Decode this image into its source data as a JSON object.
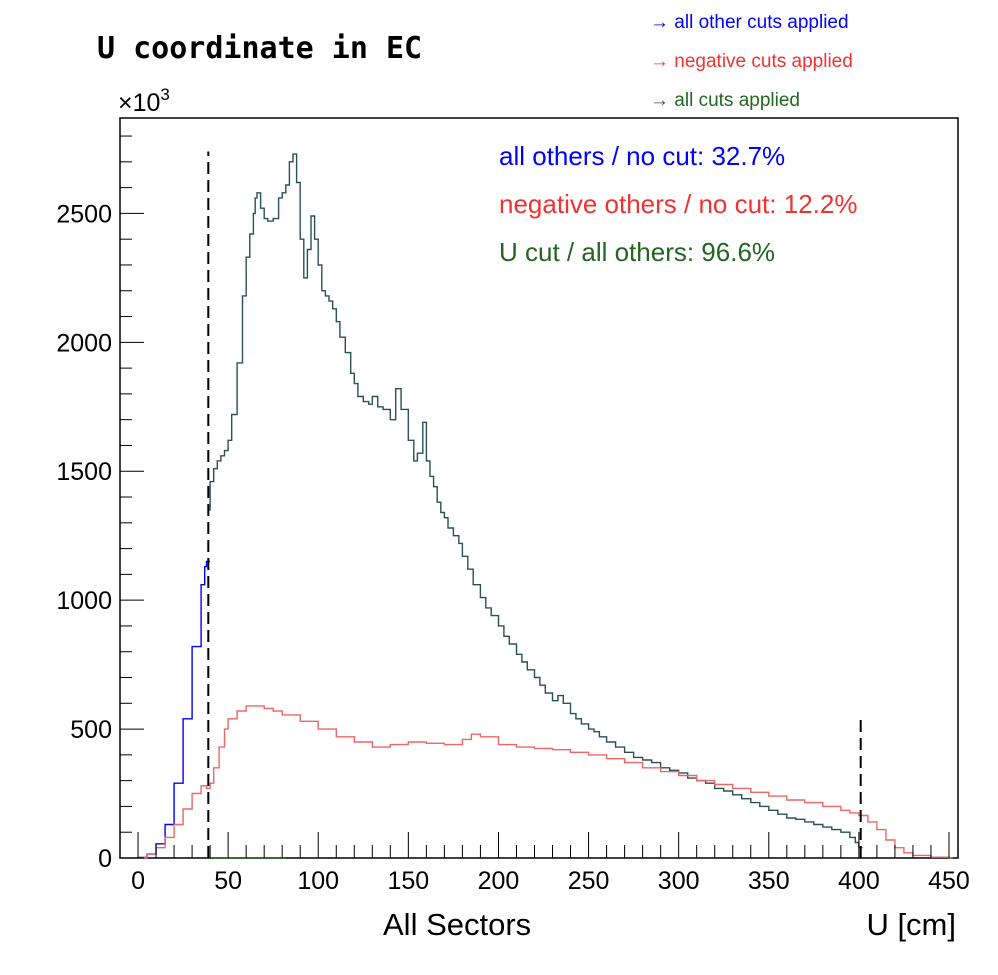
{
  "chart_data": {
    "type": "line",
    "title": "U coordinate in EC",
    "xlabel": "U [cm]",
    "sublabel": "All Sectors",
    "ylabel": "",
    "y_multiplier": "×10",
    "y_multiplier_exp": "3",
    "xlim": [
      -10,
      455
    ],
    "ylim": [
      0,
      2870
    ],
    "x_ticks": [
      0,
      50,
      100,
      150,
      200,
      250,
      300,
      350,
      400,
      450
    ],
    "y_ticks": [
      0,
      500,
      1000,
      1500,
      2000,
      2500
    ],
    "grid": false,
    "legend": [
      {
        "text": "→ all other cuts applied",
        "color": "#0000ff"
      },
      {
        "text": "→ negative cuts applied",
        "color": "#ee3333"
      },
      {
        "text": "→ all cuts applied",
        "color": "#226622"
      }
    ],
    "annotations": [
      {
        "text": "all others / no cut:  32.7%",
        "color": "#0000ff"
      },
      {
        "text": "negative others / no cut:  12.2%",
        "color": "#ee3333"
      },
      {
        "text": "U cut / all others:  96.6%",
        "color": "#226622"
      }
    ],
    "cut_lines": [
      {
        "x": 39,
        "y_top": 2740
      },
      {
        "x": 401,
        "y_top": 550
      }
    ],
    "series": [
      {
        "color": "#0000ff",
        "x": [
          0,
          5,
          10,
          15,
          20,
          25,
          30,
          35,
          37,
          38
        ],
        "y": [
          2,
          15,
          55,
          130,
          290,
          540,
          820,
          1060,
          1130,
          1150
        ]
      },
      {
        "color": "#2b5050",
        "x": [
          39,
          40,
          42,
          44,
          46,
          48,
          50,
          52,
          55,
          58,
          60,
          62,
          64,
          65,
          66,
          68,
          70,
          72,
          75,
          78,
          80,
          82,
          84,
          86,
          88,
          90,
          92,
          94,
          96,
          98,
          100,
          102,
          104,
          106,
          108,
          110,
          112,
          115,
          118,
          120,
          122,
          125,
          128,
          130,
          133,
          136,
          140,
          143,
          146,
          150,
          153,
          155,
          158,
          160,
          162,
          164,
          166,
          168,
          170,
          172,
          175,
          178,
          180,
          183,
          186,
          190,
          193,
          196,
          200,
          203,
          206,
          210,
          213,
          216,
          220,
          223,
          226,
          230,
          233,
          236,
          240,
          243,
          246,
          250,
          253,
          256,
          260,
          265,
          270,
          275,
          280,
          285,
          290,
          295,
          300,
          305,
          310,
          315,
          320,
          325,
          330,
          335,
          340,
          345,
          350,
          355,
          360,
          365,
          370,
          375,
          380,
          385,
          390,
          395,
          398,
          400
        ],
        "y": [
          1350,
          1460,
          1510,
          1540,
          1560,
          1580,
          1620,
          1720,
          1920,
          2180,
          2330,
          2420,
          2500,
          2560,
          2580,
          2520,
          2480,
          2470,
          2480,
          2560,
          2580,
          2610,
          2700,
          2730,
          2620,
          2400,
          2250,
          2360,
          2490,
          2400,
          2300,
          2200,
          2180,
          2160,
          2130,
          2080,
          2020,
          1960,
          1880,
          1840,
          1790,
          1770,
          1760,
          1790,
          1750,
          1740,
          1700,
          1820,
          1740,
          1620,
          1540,
          1570,
          1690,
          1540,
          1480,
          1440,
          1380,
          1340,
          1320,
          1280,
          1250,
          1220,
          1170,
          1120,
          1060,
          1010,
          970,
          940,
          900,
          860,
          830,
          790,
          760,
          730,
          700,
          670,
          640,
          610,
          630,
          600,
          560,
          540,
          520,
          500,
          490,
          470,
          450,
          430,
          410,
          390,
          380,
          370,
          350,
          340,
          330,
          310,
          300,
          290,
          270,
          260,
          245,
          230,
          215,
          200,
          185,
          170,
          155,
          150,
          140,
          130,
          120,
          110,
          100,
          80,
          60,
          40
        ]
      },
      {
        "color": "#ee6666",
        "x": [
          0,
          5,
          10,
          15,
          20,
          25,
          30,
          35,
          38,
          40,
          42,
          45,
          48,
          50,
          55,
          60,
          65,
          70,
          75,
          80,
          90,
          100,
          110,
          120,
          130,
          140,
          150,
          160,
          170,
          180,
          185,
          190,
          200,
          210,
          220,
          230,
          240,
          250,
          260,
          270,
          280,
          290,
          300,
          310,
          320,
          330,
          340,
          350,
          360,
          370,
          380,
          390,
          395,
          400,
          405,
          410,
          415,
          420,
          425,
          430,
          440,
          450
        ],
        "y": [
          0,
          15,
          40,
          80,
          130,
          190,
          250,
          280,
          270,
          290,
          350,
          430,
          500,
          540,
          570,
          590,
          590,
          580,
          570,
          555,
          530,
          500,
          470,
          450,
          430,
          440,
          450,
          445,
          440,
          460,
          480,
          470,
          440,
          430,
          425,
          420,
          410,
          400,
          385,
          370,
          350,
          335,
          320,
          300,
          285,
          270,
          255,
          240,
          225,
          215,
          200,
          185,
          175,
          165,
          140,
          110,
          70,
          40,
          20,
          10,
          3,
          1
        ]
      },
      {
        "color": "#226622",
        "x": [
          40,
          80
        ],
        "y": [
          0,
          0
        ]
      }
    ]
  }
}
